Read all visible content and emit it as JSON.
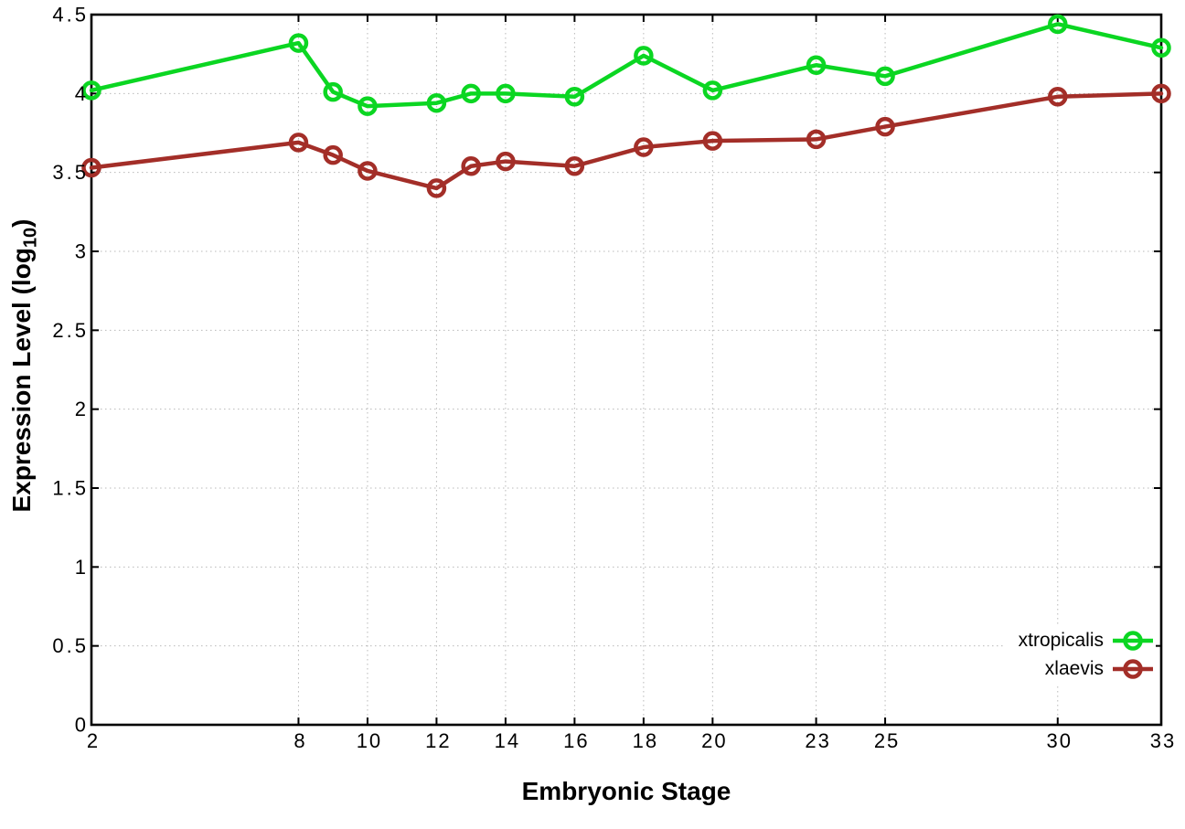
{
  "chart_data": {
    "type": "line",
    "title": "",
    "xlabel": "Embryonic Stage",
    "ylabel": "Expression Level (log10)",
    "ylabel_parts": {
      "main": "Expression Level (log",
      "sub": "10",
      "end": ")"
    },
    "xlim": [
      2,
      33
    ],
    "ylim": [
      0,
      4.5
    ],
    "grid": true,
    "legend_position": "bottom-right",
    "x": [
      2,
      8,
      9,
      10,
      12,
      13,
      14,
      16,
      18,
      20,
      23,
      25,
      30,
      33
    ],
    "xtick_values": [
      2,
      8,
      10,
      12,
      14,
      16,
      18,
      20,
      23,
      25,
      30,
      33
    ],
    "xtick_labels": [
      "2",
      "8",
      "10",
      "12",
      "14",
      "16",
      "18",
      "20",
      "23",
      "25",
      "30",
      "33"
    ],
    "ytick_values": [
      0,
      0.5,
      1,
      1.5,
      2,
      2.5,
      3,
      3.5,
      4,
      4.5
    ],
    "ytick_labels": [
      "0",
      "0.5",
      "1",
      "1.5",
      "2",
      "2.5",
      "3",
      "3.5",
      "4",
      "4.5"
    ],
    "series": [
      {
        "name": "xtropicalis",
        "color": "#0bd622",
        "values": [
          4.02,
          4.32,
          4.01,
          3.92,
          3.94,
          4.0,
          4.0,
          3.98,
          4.24,
          4.02,
          4.18,
          4.11,
          4.44,
          4.29
        ]
      },
      {
        "name": "xlaevis",
        "color": "#a32e28",
        "values": [
          3.53,
          3.69,
          3.61,
          3.51,
          3.4,
          3.54,
          3.57,
          3.54,
          3.66,
          3.7,
          3.71,
          3.79,
          3.98,
          4.0
        ]
      }
    ]
  },
  "colors": {
    "background": "#ffffff",
    "axis": "#000000",
    "grid": "#b9b9b9",
    "xtropicalis": "#0bd622",
    "xlaevis": "#a32e28"
  }
}
